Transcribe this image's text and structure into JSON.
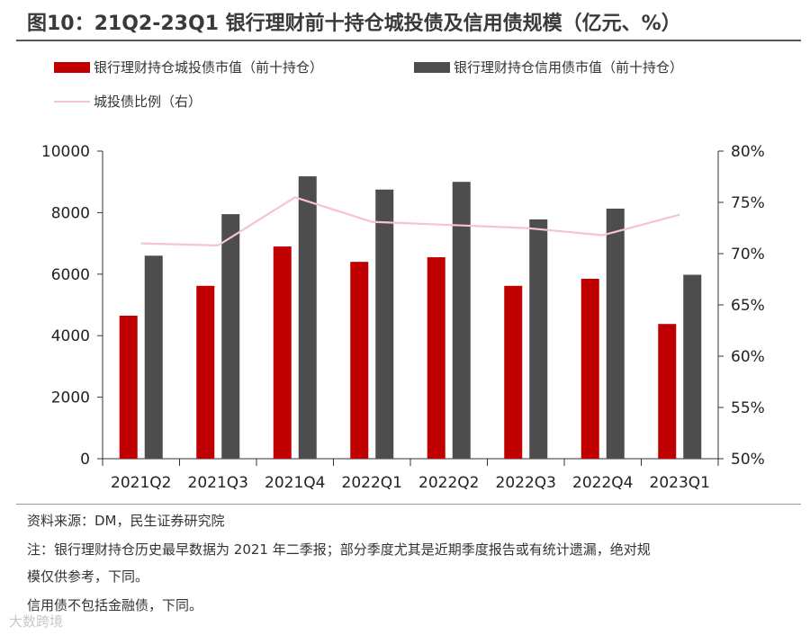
{
  "title": "图10：21Q2-23Q1 银行理财前十持仓城投债及信用债规模（亿元、%）",
  "legend": {
    "bar1": "银行理财持仓城投债市值（前十持仓）",
    "bar2": "银行理财持仓信用债市值（前十持仓）",
    "line": "城投债比例（右）"
  },
  "colors": {
    "bar1": "#c00000",
    "bar2": "#4d4d4d",
    "line": "#f4c4cf",
    "axis": "#333333"
  },
  "chart_data": {
    "type": "bar",
    "categories": [
      "2021Q2",
      "2021Q3",
      "2021Q4",
      "2022Q1",
      "2022Q2",
      "2022Q3",
      "2022Q4",
      "2023Q1"
    ],
    "series": [
      {
        "name": "银行理财持仓城投债市值（前十持仓）",
        "axis": "left",
        "type": "bar",
        "values": [
          4650,
          5620,
          6900,
          6400,
          6550,
          5620,
          5850,
          4380
        ]
      },
      {
        "name": "银行理财持仓信用债市值（前十持仓）",
        "axis": "left",
        "type": "bar",
        "values": [
          6600,
          7950,
          9180,
          8750,
          9000,
          7780,
          8130,
          5980
        ]
      },
      {
        "name": "城投债比例（右）",
        "axis": "right",
        "type": "line",
        "values": [
          71.0,
          70.8,
          75.5,
          73.1,
          72.8,
          72.5,
          71.8,
          73.8
        ]
      }
    ],
    "ylim_left": [
      0,
      10000
    ],
    "yticks_left": [
      "0",
      "2000",
      "4000",
      "6000",
      "8000",
      "10000"
    ],
    "ylim_right": [
      50,
      80
    ],
    "yticks_right": [
      "50%",
      "55%",
      "60%",
      "65%",
      "70%",
      "75%",
      "80%"
    ]
  },
  "notes": {
    "source": "资料来源：DM，民生证券研究院",
    "note1": "注：银行理财持仓历史最早数据为 2021 年二季报；部分季度尤其是近期季度报告或有统计遗漏，绝对规",
    "note2": "模仅供参考，下同。",
    "note3": "信用债不包括金融债，下同。"
  },
  "watermark": "大数跨境"
}
